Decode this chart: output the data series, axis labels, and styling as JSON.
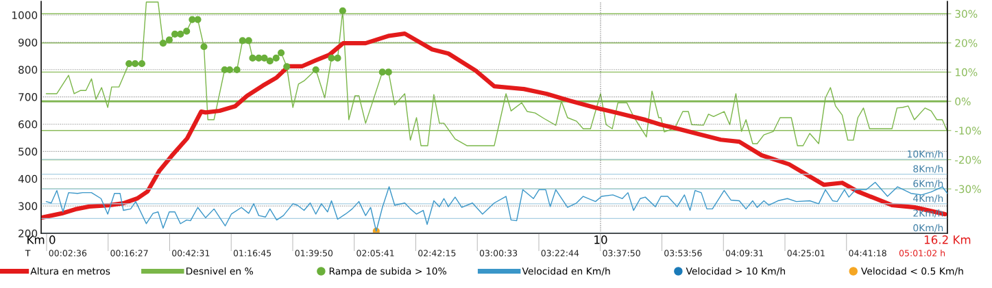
{
  "chart_data": {
    "type": "line",
    "xlim": [
      0,
      16.2
    ],
    "xticks": [
      {
        "value": 0,
        "label": "Km 0"
      },
      {
        "value": 10,
        "label": "10"
      },
      {
        "value": 16.2,
        "label": "16.2 Km"
      }
    ],
    "annotations": [
      "T",
      "00:02:36",
      "00:16:27",
      "00:42:31",
      "01:16:45",
      "01:39:50",
      "02:05:41",
      "02:42:15",
      "03:00:33",
      "03:22:44",
      "03:37:50",
      "03:53:56",
      "04:09:31",
      "04:25:01",
      "04:41:18",
      "05:01:02 h"
    ],
    "ylim": [
      200,
      1050
    ],
    "yticks": [
      200,
      300,
      400,
      500,
      600,
      700,
      800,
      900,
      1000
    ],
    "y2lim": [
      -45.2,
      34.2
    ],
    "y2ticks": [
      {
        "value": -30,
        "label": "-30%"
      },
      {
        "value": -20,
        "label": "-20%"
      },
      {
        "value": -10,
        "label": "-10%"
      },
      {
        "value": 0,
        "label": "0%"
      },
      {
        "value": 10,
        "label": "10%"
      },
      {
        "value": 20,
        "label": "20%"
      },
      {
        "value": 30,
        "label": "30%"
      }
    ],
    "y3lim": [
      0,
      31.4
    ],
    "y3ticks": [
      {
        "value": 0,
        "label": "0Km/h"
      },
      {
        "value": 2,
        "label": "2Km/h"
      },
      {
        "value": 4,
        "label": "4Km/h"
      },
      {
        "value": 6,
        "label": "6Km/h"
      },
      {
        "value": 8,
        "label": "8Km/h"
      },
      {
        "value": 10,
        "label": "10Km/h"
      }
    ],
    "grid": "y",
    "legend": "bottom",
    "ref_lines": [
      {
        "axis": "y2",
        "value": 0,
        "label": null,
        "color": "#6aa83a"
      },
      {
        "axis": "x",
        "value": 10,
        "label": null,
        "color": "#666666",
        "line_style": "dotted"
      }
    ],
    "series": [
      {
        "name": "Altura en metros",
        "axis": "y",
        "color": "#e31b1b",
        "x": [
          0.02,
          0.37,
          0.61,
          0.86,
          1.23,
          1.47,
          1.72,
          1.9,
          2.11,
          2.33,
          2.61,
          2.86,
          2.94,
          3.19,
          3.47,
          3.68,
          3.96,
          4.21,
          4.42,
          4.66,
          4.91,
          5.15,
          5.4,
          5.8,
          6.22,
          6.5,
          6.99,
          7.28,
          7.77,
          8.1,
          8.63,
          9.04,
          9.45,
          9.9,
          10.31,
          10.8,
          11.08,
          11.33,
          12.15,
          12.48,
          12.88,
          13.37,
          13.99,
          14.32,
          14.6,
          15.21,
          15.62,
          16.16
        ],
        "values": [
          258,
          273,
          288,
          298,
          303,
          310,
          328,
          353,
          428,
          483,
          548,
          646,
          643,
          649,
          666,
          704,
          741,
          771,
          812,
          812,
          834,
          854,
          897,
          897,
          924,
          932,
          874,
          859,
          796,
          739,
          729,
          711,
          686,
          661,
          641,
          616,
          598,
          586,
          543,
          536,
          486,
          453,
          378,
          385,
          353,
          303,
          295,
          270
        ]
      },
      {
        "name": "Desnivel en %",
        "axis": "y2",
        "color": "#7ab648",
        "x": [
          0.09,
          0.28,
          0.49,
          0.59,
          0.7,
          0.8,
          0.9,
          0.98,
          1.08,
          1.19,
          1.26,
          1.39,
          1.57,
          1.68,
          1.8,
          1.88,
          2.09,
          2.18,
          2.29,
          2.39,
          2.49,
          2.6,
          2.7,
          2.8,
          2.91,
          2.98,
          3.09,
          3.28,
          3.37,
          3.5,
          3.6,
          3.71,
          3.78,
          3.89,
          3.99,
          4.09,
          4.2,
          4.29,
          4.39,
          4.5,
          4.6,
          4.7,
          4.91,
          5.07,
          5.19,
          5.3,
          5.39,
          5.5,
          5.61,
          5.68,
          5.8,
          6.1,
          6.21,
          6.32,
          6.5,
          6.6,
          6.71,
          6.79,
          6.91,
          7.02,
          7.12,
          7.2,
          7.4,
          7.61,
          8.1,
          8.31,
          8.4,
          8.59,
          8.69,
          8.83,
          8.99,
          9.2,
          9.3,
          9.41,
          9.57,
          9.69,
          9.82,
          10.0,
          10.1,
          10.21,
          10.31,
          10.47,
          10.59,
          10.82,
          10.92,
          11.04,
          11.08,
          11.14,
          11.33,
          11.47,
          11.57,
          11.63,
          11.84,
          11.93,
          12.02,
          12.21,
          12.31,
          12.42,
          12.52,
          12.6,
          12.72,
          12.8,
          12.92,
          13.09,
          13.21,
          13.41,
          13.52,
          13.62,
          13.74,
          13.9,
          14.02,
          14.11,
          14.2,
          14.32,
          14.42,
          14.52,
          14.6,
          14.7,
          14.81,
          15.21,
          15.3,
          15.4,
          15.5,
          15.61,
          15.8,
          15.91,
          16.01,
          16.11,
          16.2
        ],
        "values": [
          2.6,
          2.6,
          8.9,
          2.6,
          3.7,
          3.7,
          7.7,
          0.7,
          4.7,
          -2.1,
          4.9,
          4.9,
          12.9,
          12.9,
          12.9,
          34,
          34,
          19.9,
          21,
          23,
          23,
          24,
          28,
          28,
          18.7,
          -6.3,
          -6.3,
          10.8,
          10.8,
          10.8,
          20.8,
          20.8,
          14.8,
          14.8,
          14.8,
          13.8,
          14.8,
          16.6,
          11.9,
          -2.1,
          5.9,
          7,
          10.8,
          1.2,
          14.8,
          14.8,
          31,
          -6.3,
          1.9,
          1.9,
          -7.5,
          10,
          10,
          -1.2,
          2.6,
          -13.3,
          -5.6,
          -15.2,
          -15.2,
          2.3,
          -7.5,
          -7.5,
          -12.9,
          -15.2,
          -15.2,
          2.6,
          -3.3,
          -0.5,
          -3.5,
          -4,
          -5.9,
          -8.2,
          0,
          -5.6,
          -6.8,
          -9.4,
          -9.4,
          2.6,
          -8,
          -9.4,
          -0.5,
          -0.5,
          -5.2,
          -12.2,
          3.5,
          -5.6,
          -5.6,
          -10.5,
          -9.1,
          -3.5,
          -3.5,
          -8,
          -8.2,
          -4.4,
          -5.2,
          -3.5,
          -8,
          2.6,
          -10.3,
          -6.3,
          -14.5,
          -14.5,
          -11.5,
          -10.3,
          -5.6,
          -5.6,
          -15.2,
          -15.2,
          -11,
          -14.5,
          1.2,
          4.7,
          -1.6,
          -4.7,
          -13.3,
          -13.3,
          -5.6,
          -2.3,
          -9.4,
          -9.4,
          -2.3,
          -2.1,
          -1.6,
          -6.3,
          -2.3,
          -3.3,
          -6.3,
          -6.3,
          -10.3
        ]
      },
      {
        "name": "Rampa de subida > 10%",
        "type": "scatter",
        "axis": "y2",
        "color": "#6aaf3a",
        "x": [
          1.57,
          1.68,
          1.8,
          2.18,
          2.29,
          2.39,
          2.49,
          2.6,
          2.7,
          2.8,
          2.91,
          3.28,
          3.37,
          3.5,
          3.6,
          3.71,
          3.78,
          3.89,
          3.99,
          4.09,
          4.2,
          4.29,
          4.39,
          4.91,
          5.19,
          5.3,
          5.39,
          6.1,
          6.21
        ],
        "values": [
          12.9,
          12.9,
          12.9,
          19.9,
          21,
          23,
          23,
          24,
          28,
          28,
          18.7,
          10.8,
          10.8,
          10.8,
          20.8,
          20.8,
          14.8,
          14.8,
          14.8,
          13.8,
          14.8,
          16.6,
          11.9,
          10.8,
          14.8,
          14.8,
          31,
          10,
          10
        ]
      },
      {
        "name": "Velocidad en Km/h",
        "axis": "y3",
        "color": "#3a96c8",
        "x": [
          0.09,
          0.18,
          0.28,
          0.39,
          0.49,
          0.65,
          0.74,
          0.9,
          1.07,
          1.19,
          1.31,
          1.41,
          1.47,
          1.6,
          1.69,
          1.88,
          2.0,
          2.09,
          2.18,
          2.29,
          2.39,
          2.49,
          2.6,
          2.67,
          2.8,
          2.94,
          3.09,
          3.29,
          3.4,
          3.58,
          3.71,
          3.8,
          3.89,
          4.01,
          4.09,
          4.21,
          4.33,
          4.5,
          4.58,
          4.7,
          4.81,
          4.91,
          5.01,
          5.12,
          5.19,
          5.3,
          5.44,
          5.56,
          5.68,
          5.8,
          5.89,
          5.99,
          6.1,
          6.22,
          6.32,
          6.5,
          6.6,
          6.71,
          6.83,
          6.9,
          7.02,
          7.12,
          7.2,
          7.28,
          7.4,
          7.52,
          7.71,
          7.89,
          8.1,
          8.31,
          8.4,
          8.5,
          8.61,
          8.8,
          8.9,
          9.02,
          9.1,
          9.2,
          9.41,
          9.57,
          9.69,
          9.91,
          10.02,
          10.22,
          10.39,
          10.49,
          10.59,
          10.71,
          10.8,
          10.98,
          11.08,
          11.2,
          11.37,
          11.5,
          11.6,
          11.69,
          11.8,
          11.9,
          12.0,
          12.21,
          12.33,
          12.48,
          12.6,
          12.72,
          12.8,
          12.92,
          13.01,
          13.17,
          13.34,
          13.5,
          13.74,
          13.9,
          14.02,
          14.15,
          14.23,
          14.36,
          14.44,
          14.56,
          14.75,
          14.91,
          15.13,
          15.31,
          15.55,
          15.74,
          15.91,
          16.11,
          16.2
        ],
        "values": [
          4.3,
          4.1,
          5.8,
          2.9,
          5.5,
          5.4,
          5.5,
          5.5,
          4.7,
          2.6,
          5.4,
          5.4,
          3.1,
          3.3,
          4.3,
          1.3,
          2.7,
          2.9,
          0.7,
          2.9,
          2.9,
          1.3,
          1.8,
          1.7,
          3.5,
          2.1,
          3.3,
          1.0,
          2.6,
          3.5,
          2.7,
          4.0,
          2.4,
          2.2,
          3.3,
          1.8,
          2.4,
          4.0,
          3.8,
          3.1,
          4.1,
          2.6,
          4.0,
          2.9,
          4.4,
          1.9,
          2.6,
          3.3,
          4.3,
          2.4,
          3.5,
          0.3,
          3.5,
          6.3,
          3.8,
          4.1,
          3.3,
          2.6,
          3.1,
          1.2,
          4.4,
          3.6,
          4.7,
          3.6,
          4.9,
          3.5,
          4.1,
          2.6,
          4.1,
          5.0,
          1.8,
          1.7,
          5.9,
          4.7,
          5.9,
          5.9,
          3.6,
          5.9,
          3.5,
          4.1,
          5.0,
          4.3,
          5.0,
          5.2,
          4.7,
          5.5,
          3.1,
          4.7,
          4.9,
          3.6,
          5.0,
          5.0,
          3.6,
          5.2,
          3.1,
          5.8,
          5.5,
          3.3,
          3.3,
          5.8,
          4.5,
          4.4,
          3.3,
          4.4,
          3.5,
          4.4,
          3.8,
          4.4,
          4.7,
          4.3,
          4.4,
          4.0,
          5.9,
          4.4,
          4.3,
          5.9,
          4.9,
          5.9,
          5.9,
          6.9,
          5.0,
          6.3,
          5.4,
          5.2,
          5.6,
          6.3,
          5.4
        ]
      },
      {
        "name": "Velocidad > 10 Km/h",
        "type": "scatter",
        "axis": "y3",
        "color": "#1a7ab8"
      },
      {
        "name": "Velocidad < 0.5 Km/h",
        "type": "scatter",
        "axis": "y3",
        "color": "#f5a623",
        "x": [
          5.99
        ],
        "values": [
          0.3
        ]
      }
    ]
  }
}
